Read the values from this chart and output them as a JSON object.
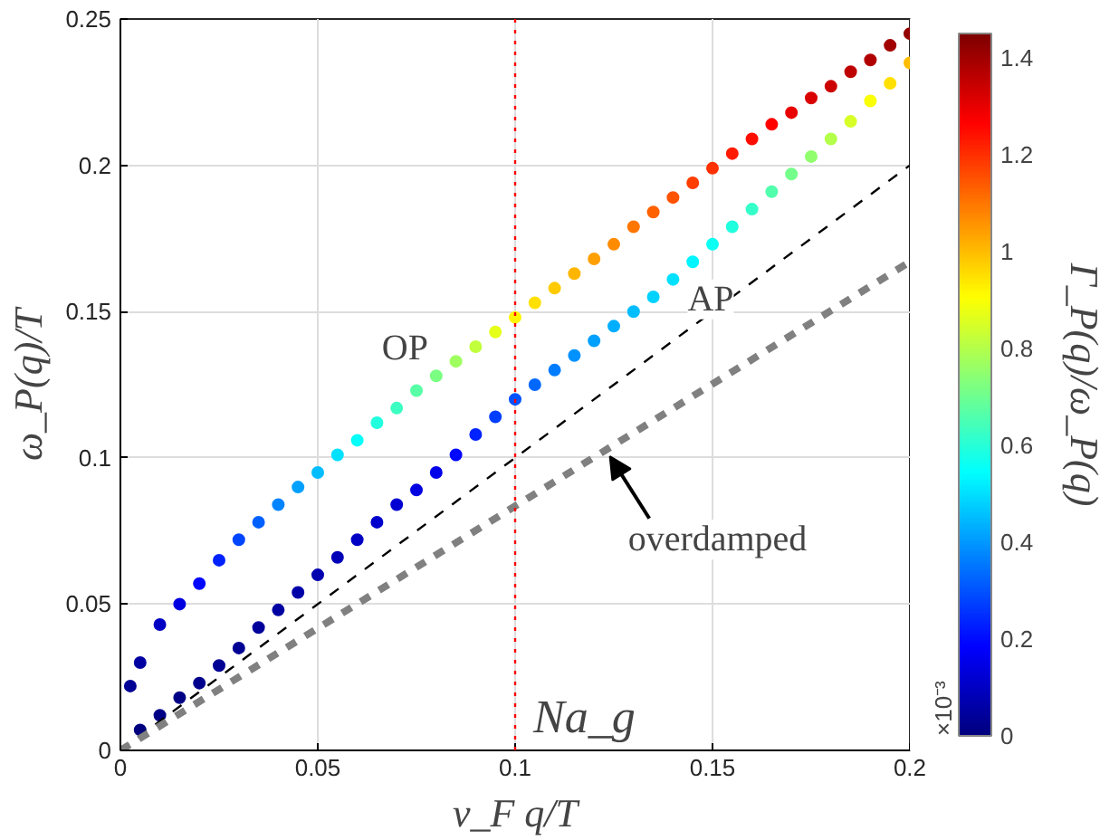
{
  "chart_data": {
    "type": "line",
    "xlabel": "v_F q/T",
    "ylabel": "ω_P(q)/T",
    "clabel": "Γ_P(q)/ω_P(q)",
    "annotations": [
      "×10⁻³"
    ],
    "xlim": [
      0,
      0.2
    ],
    "xticks": [
      0,
      0.05,
      0.1,
      0.15,
      0.2
    ],
    "ylim": [
      0,
      0.25
    ],
    "yticks": [
      0,
      0.05,
      0.1,
      0.15,
      0.2,
      0.25
    ],
    "clim": [
      0,
      1.45
    ],
    "cticks": [
      0,
      0.2,
      0.4,
      0.6,
      0.8,
      1,
      1.2,
      1.4
    ],
    "grid": true,
    "legend": false,
    "marker": "none",
    "series": [
      {
        "name": "OP",
        "type": "scatter",
        "marker": "circle",
        "colors": [
          "#000094",
          "#0000a2",
          "#0000c5",
          "#0000e1",
          "#0006ff",
          "#0022ff",
          "#0045ff",
          "#0061ff",
          "#0084ff",
          "#00a0ff",
          "#00bdff",
          "#00e0ff",
          "#04fffa",
          "#20ffde",
          "#3cffc2",
          "#58ffa6",
          "#7bff83",
          "#9fff5f",
          "#c2ff3c",
          "#e5ff19",
          "#fff500",
          "#ffe000",
          "#ffcb00",
          "#ffb600",
          "#ffa000",
          "#ff8b00",
          "#ff7600",
          "#ff6100",
          "#ff5300",
          "#ff3e00",
          "#ff3000",
          "#ff1b00",
          "#ff0d00",
          "#fe0000",
          "#e90000",
          "#da0000",
          "#cc0000",
          "#be0000",
          "#b00000",
          "#a20000",
          "#940000"
        ],
        "x": [
          0.0025,
          0.005,
          0.01,
          0.015,
          0.02,
          0.025,
          0.03,
          0.035,
          0.04,
          0.045,
          0.05,
          0.055,
          0.06,
          0.065,
          0.07,
          0.075,
          0.08,
          0.085,
          0.09,
          0.095,
          0.1,
          0.105,
          0.11,
          0.115,
          0.12,
          0.125,
          0.13,
          0.135,
          0.14,
          0.145,
          0.15,
          0.155,
          0.16,
          0.165,
          0.17,
          0.175,
          0.18,
          0.185,
          0.19,
          0.195,
          0.2
        ],
        "values": [
          0.022,
          0.03,
          0.043,
          0.05,
          0.057,
          0.065,
          0.072,
          0.078,
          0.084,
          0.09,
          0.095,
          0.101,
          0.106,
          0.112,
          0.117,
          0.123,
          0.128,
          0.133,
          0.138,
          0.143,
          0.148,
          0.153,
          0.158,
          0.163,
          0.168,
          0.173,
          0.179,
          0.184,
          0.189,
          0.194,
          0.199,
          0.204,
          0.209,
          0.214,
          0.218,
          0.223,
          0.227,
          0.232,
          0.236,
          0.241,
          0.245
        ],
        "cvalues": [
          0.03,
          0.05,
          0.1,
          0.14,
          0.19,
          0.23,
          0.28,
          0.32,
          0.37,
          0.41,
          0.45,
          0.5,
          0.55,
          0.59,
          0.63,
          0.67,
          0.72,
          0.77,
          0.82,
          0.87,
          0.92,
          0.95,
          0.98,
          1.01,
          1.04,
          1.07,
          1.1,
          1.13,
          1.15,
          1.18,
          1.2,
          1.23,
          1.25,
          1.27,
          1.3,
          1.32,
          1.34,
          1.36,
          1.38,
          1.4,
          1.42
        ]
      },
      {
        "name": "AP",
        "type": "scatter",
        "marker": "circle",
        "colors": [
          "#00007f",
          "#000086",
          "#000086",
          "#00008d",
          "#000094",
          "#000094",
          "#00009b",
          "#0000a2",
          "#0000a9",
          "#0000b0",
          "#0000b7",
          "#0000c5",
          "#0000cc",
          "#0000d3",
          "#0000e1",
          "#0000e9",
          "#0006ff",
          "#0022ff",
          "#003eff",
          "#0053ff",
          "#0068ff",
          "#007dff",
          "#0092ff",
          "#00a0ff",
          "#00aeff",
          "#00bdff",
          "#00d2ff",
          "#00e0ff",
          "#00f5ff",
          "#0bfff3",
          "#20ffde",
          "#35ffc9",
          "#51ffad",
          "#74ff8a",
          "#91ff6d",
          "#b4ff4a",
          "#d7ff27",
          "#faff04",
          "#ffe000",
          "#ffbd00"
        ],
        "x": [
          0.005,
          0.01,
          0.015,
          0.02,
          0.025,
          0.03,
          0.035,
          0.04,
          0.045,
          0.05,
          0.055,
          0.06,
          0.065,
          0.07,
          0.075,
          0.08,
          0.085,
          0.09,
          0.095,
          0.1,
          0.105,
          0.11,
          0.115,
          0.12,
          0.125,
          0.13,
          0.135,
          0.14,
          0.145,
          0.15,
          0.155,
          0.16,
          0.165,
          0.17,
          0.175,
          0.18,
          0.185,
          0.19,
          0.195,
          0.2
        ],
        "values": [
          0.007,
          0.012,
          0.018,
          0.023,
          0.029,
          0.035,
          0.042,
          0.048,
          0.054,
          0.06,
          0.066,
          0.072,
          0.078,
          0.084,
          0.089,
          0.095,
          0.101,
          0.108,
          0.114,
          0.12,
          0.125,
          0.13,
          0.135,
          0.14,
          0.145,
          0.15,
          0.155,
          0.161,
          0.167,
          0.173,
          0.179,
          0.185,
          0.191,
          0.197,
          0.203,
          0.209,
          0.215,
          0.222,
          0.228,
          0.235
        ],
        "cvalues": [
          0,
          0.01,
          0.01,
          0.02,
          0.03,
          0.03,
          0.04,
          0.05,
          0.06,
          0.07,
          0.08,
          0.1,
          0.11,
          0.12,
          0.14,
          0.15,
          0.19,
          0.23,
          0.27,
          0.3,
          0.33,
          0.36,
          0.39,
          0.41,
          0.43,
          0.45,
          0.48,
          0.5,
          0.53,
          0.56,
          0.59,
          0.62,
          0.66,
          0.71,
          0.75,
          0.8,
          0.85,
          0.9,
          0.95,
          1.0
        ]
      },
      {
        "x": [
          0,
          0.2
        ],
        "values": [
          0,
          0.2
        ],
        "color": "#000000",
        "line_style": "dashed"
      },
      {
        "name": "overdamped",
        "x": [
          0,
          0.2
        ],
        "values": [
          0,
          0.167
        ],
        "color": "#808080",
        "line_style": "dashed"
      }
    ],
    "ref_lines": [
      {
        "axis": "x",
        "value": 0.1,
        "label": "Na_g",
        "color": "#ff0000",
        "line_style": "dotted"
      }
    ]
  }
}
